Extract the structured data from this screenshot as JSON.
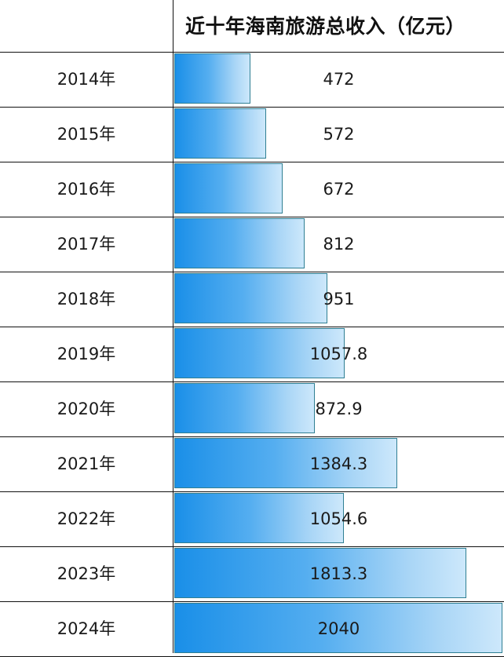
{
  "chart_data": {
    "type": "bar",
    "orientation": "horizontal",
    "title": "近十年海南旅游总收入（亿元）",
    "xlabel": "",
    "ylabel": "",
    "unit": "亿元",
    "categories": [
      "2014年",
      "2015年",
      "2016年",
      "2017年",
      "2018年",
      "2019年",
      "2020年",
      "2021年",
      "2022年",
      "2023年",
      "2024年"
    ],
    "values": [
      472,
      572,
      672,
      812,
      951,
      1057.8,
      872.9,
      1384.3,
      1054.6,
      1813.3,
      2040
    ],
    "value_labels": [
      "472",
      "572",
      "672",
      "812",
      "951",
      "1057.8",
      "872.9",
      "1384.3",
      "1054.6",
      "1813.3",
      "2040"
    ],
    "xlim": [
      0,
      2040
    ],
    "grid": false,
    "legend": null,
    "bar_gradient": [
      "#1a8fe8",
      "#cde8fb"
    ],
    "bar_border": "#2f7f93"
  },
  "header": {
    "title": "近十年海南旅游总收入（亿元）"
  }
}
